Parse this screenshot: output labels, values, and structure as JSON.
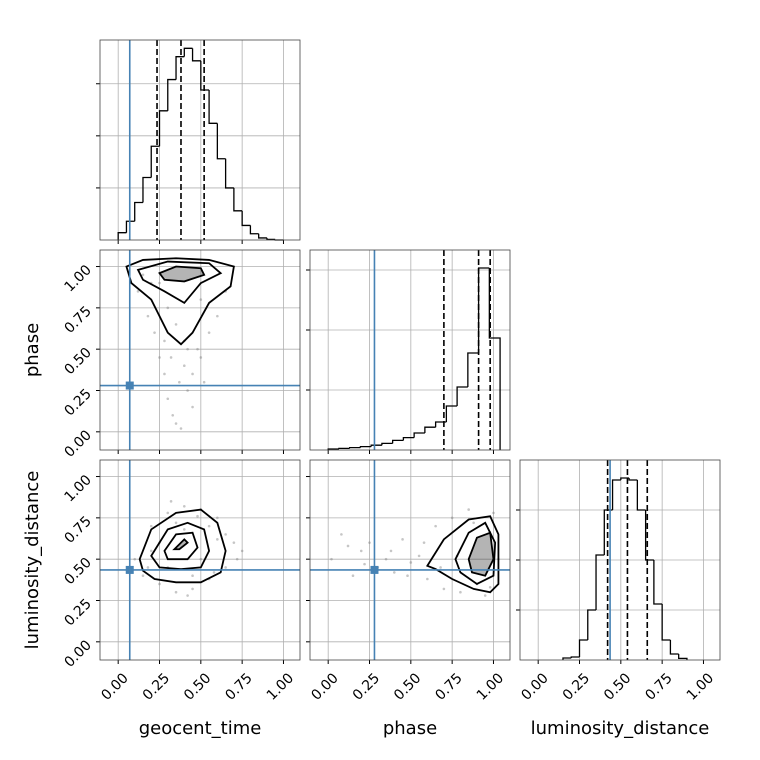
{
  "chart_data": [
    {
      "type": "histogram",
      "grid": true,
      "color": "#000000",
      "truth_color": "#4682b4",
      "bins": [
        0,
        0.05,
        0.1,
        0.15,
        0.2,
        0.25,
        0.3,
        0.35,
        0.4,
        0.45,
        0.5,
        0.55,
        0.6,
        0.65,
        0.7,
        0.75,
        0.8,
        0.85,
        0.9,
        0.95,
        1.0
      ],
      "counts": [
        35,
        90,
        180,
        300,
        450,
        620,
        770,
        880,
        920,
        860,
        720,
        560,
        390,
        250,
        140,
        70,
        30,
        10,
        3,
        0
      ],
      "xlim": [
        -0.11,
        1.1
      ],
      "xticks": [
        0,
        0.25,
        0.5,
        0.75,
        1
      ],
      "ylim": [
        0,
        960
      ],
      "yticks": [
        250,
        500,
        750
      ],
      "quantiles": [
        0.235,
        0.38,
        0.52
      ],
      "truth": 0.07
    },
    {
      "type": "histogram",
      "grid": true,
      "color": "#000000",
      "truth_color": "#4682b4",
      "bins": [
        0,
        0.065,
        0.13,
        0.195,
        0.26,
        0.325,
        0.39,
        0.455,
        0.52,
        0.585,
        0.65,
        0.715,
        0.78,
        0.845,
        0.91,
        0.975,
        1.04
      ],
      "counts": [
        5,
        8,
        12,
        17,
        24,
        33,
        48,
        62,
        85,
        114,
        140,
        220,
        315,
        485,
        910,
        560
      ],
      "xlim": [
        -0.11,
        1.1
      ],
      "xticks": [
        0,
        0.25,
        0.5,
        0.75,
        1
      ],
      "ylim": [
        0,
        1000
      ],
      "yticks": [
        300,
        600,
        900
      ],
      "quantiles": [
        0.7,
        0.91,
        0.98
      ],
      "truth": 0.28
    },
    {
      "type": "histogram",
      "grid": true,
      "color": "#000000",
      "truth_color": "#4682b4",
      "xlabel": "luminosity_distance",
      "bins": [
        0.15,
        0.2,
        0.25,
        0.3,
        0.35,
        0.4,
        0.45,
        0.5,
        0.55,
        0.6,
        0.65,
        0.7,
        0.75,
        0.8,
        0.85,
        0.9
      ],
      "counts": [
        10,
        15,
        100,
        250,
        525,
        750,
        900,
        910,
        900,
        750,
        500,
        280,
        100,
        30,
        8
      ],
      "xlim": [
        -0.11,
        1.1
      ],
      "xticks": [
        {
          "value": 0,
          "label": "0.00"
        },
        {
          "value": 0.25,
          "label": "0.25"
        },
        {
          "value": 0.5,
          "label": "0.50"
        },
        {
          "value": 0.75,
          "label": "0.75"
        },
        {
          "value": 1,
          "label": "1.00"
        }
      ],
      "ylim": [
        0,
        1000
      ],
      "yticks": [
        250,
        500,
        750
      ],
      "quantiles": [
        0.42,
        0.54,
        0.66
      ],
      "truth": 0.435
    },
    {
      "type": "scatter",
      "grid": true,
      "color": "#808080",
      "truth_color": "#4682b4",
      "ylabel": "phase",
      "x": [
        0.12,
        0.18,
        0.22,
        0.25,
        0.28,
        0.3,
        0.33,
        0.35,
        0.37,
        0.4,
        0.42,
        0.45,
        0.48,
        0.5,
        0.55,
        0.6,
        0.65,
        0.2,
        0.3,
        0.4,
        0.5,
        0.35,
        0.45,
        0.25,
        0.38,
        0.42,
        0.32,
        0.28,
        0.52,
        0.15
      ],
      "y": [
        0.85,
        0.7,
        0.6,
        0.45,
        0.35,
        0.2,
        0.1,
        0.05,
        0.3,
        0.4,
        0.25,
        0.15,
        0.5,
        0.45,
        0.6,
        0.7,
        0.85,
        0.9,
        0.75,
        0.55,
        0.8,
        0.65,
        0.35,
        0.9,
        0.02,
        0.5,
        0.45,
        0.55,
        0.3,
        0.95
      ],
      "contours": [
        {
          "x": [
            0.05,
            0.15,
            0.35,
            0.55,
            0.7,
            0.68,
            0.55,
            0.45,
            0.38,
            0.3,
            0.2,
            0.08
          ],
          "y": [
            1.0,
            1.04,
            1.05,
            1.04,
            1.0,
            0.88,
            0.78,
            0.6,
            0.53,
            0.6,
            0.8,
            0.9
          ]
        },
        {
          "x": [
            0.12,
            0.3,
            0.55,
            0.62,
            0.5,
            0.4,
            0.28,
            0.15
          ],
          "y": [
            0.98,
            1.03,
            1.02,
            0.96,
            0.9,
            0.78,
            0.85,
            0.92
          ]
        },
        {
          "x": [
            0.25,
            0.35,
            0.5,
            0.52,
            0.4,
            0.28
          ],
          "y": [
            0.96,
            1.0,
            0.99,
            0.95,
            0.91,
            0.92
          ]
        }
      ],
      "truth": {
        "x": 0.07,
        "y": 0.28
      },
      "xlim": [
        -0.11,
        1.1
      ],
      "xticks": [
        0,
        0.25,
        0.5,
        0.75,
        1
      ],
      "ylim": [
        -0.11,
        1.1
      ],
      "yticks": [
        {
          "value": 0,
          "label": "0.00"
        },
        {
          "value": 0.25,
          "label": "0.25"
        },
        {
          "value": 0.5,
          "label": "0.50"
        },
        {
          "value": 0.75,
          "label": "0.75"
        },
        {
          "value": 1,
          "label": "1.00"
        }
      ]
    },
    {
      "type": "scatter",
      "grid": true,
      "color": "#808080",
      "truth_color": "#4682b4",
      "xlabel": "geocent_time",
      "ylabel": "luminosity_distance",
      "x": [
        0.1,
        0.15,
        0.2,
        0.25,
        0.3,
        0.35,
        0.4,
        0.45,
        0.5,
        0.55,
        0.6,
        0.65,
        0.7,
        0.75,
        0.2,
        0.3,
        0.4,
        0.5,
        0.6,
        0.25,
        0.35,
        0.45,
        0.55,
        0.65,
        0.18,
        0.72,
        0.42,
        0.32,
        0.58,
        0.48
      ],
      "y": [
        0.5,
        0.4,
        0.7,
        0.35,
        0.78,
        0.3,
        0.82,
        0.32,
        0.8,
        0.38,
        0.75,
        0.45,
        0.6,
        0.55,
        0.55,
        0.45,
        0.68,
        0.5,
        0.62,
        0.6,
        0.72,
        0.4,
        0.7,
        0.65,
        0.45,
        0.5,
        0.28,
        0.85,
        0.42,
        0.76
      ],
      "contours": [
        {
          "x": [
            0.13,
            0.2,
            0.35,
            0.5,
            0.6,
            0.65,
            0.62,
            0.5,
            0.35,
            0.22,
            0.15
          ],
          "y": [
            0.5,
            0.68,
            0.78,
            0.8,
            0.72,
            0.55,
            0.42,
            0.36,
            0.36,
            0.38,
            0.43
          ]
        },
        {
          "x": [
            0.2,
            0.3,
            0.42,
            0.52,
            0.55,
            0.5,
            0.38,
            0.25
          ],
          "y": [
            0.52,
            0.68,
            0.72,
            0.68,
            0.55,
            0.45,
            0.44,
            0.45
          ]
        },
        {
          "x": [
            0.28,
            0.35,
            0.45,
            0.48,
            0.42,
            0.3
          ],
          "y": [
            0.55,
            0.65,
            0.66,
            0.57,
            0.5,
            0.5
          ]
        },
        {
          "x": [
            0.34,
            0.4,
            0.42,
            0.37
          ],
          "y": [
            0.56,
            0.62,
            0.6,
            0.56
          ]
        }
      ],
      "truth": {
        "x": 0.07,
        "y": 0.435
      },
      "xlim": [
        -0.11,
        1.1
      ],
      "xticks": [
        {
          "value": 0,
          "label": "0.00"
        },
        {
          "value": 0.25,
          "label": "0.25"
        },
        {
          "value": 0.5,
          "label": "0.50"
        },
        {
          "value": 0.75,
          "label": "0.75"
        },
        {
          "value": 1,
          "label": "1.00"
        }
      ],
      "ylim": [
        -0.11,
        1.1
      ],
      "yticks": [
        {
          "value": 0,
          "label": "0.00"
        },
        {
          "value": 0.25,
          "label": "0.25"
        },
        {
          "value": 0.5,
          "label": "0.50"
        },
        {
          "value": 0.75,
          "label": "0.75"
        },
        {
          "value": 1,
          "label": "1.00"
        }
      ]
    },
    {
      "type": "scatter",
      "grid": true,
      "color": "#808080",
      "truth_color": "#4682b4",
      "xlabel": "phase",
      "x": [
        0.02,
        0.08,
        0.15,
        0.2,
        0.25,
        0.3,
        0.35,
        0.4,
        0.45,
        0.5,
        0.55,
        0.6,
        0.65,
        0.7,
        0.75,
        0.8,
        0.85,
        0.9,
        0.95,
        1.0,
        0.12,
        0.22,
        0.38,
        0.48,
        0.58,
        0.68,
        0.78,
        0.88,
        0.98,
        1.03
      ],
      "y": [
        0.5,
        0.65,
        0.4,
        0.55,
        0.6,
        0.45,
        0.5,
        0.42,
        0.62,
        0.48,
        0.52,
        0.38,
        0.7,
        0.32,
        0.75,
        0.3,
        0.8,
        0.35,
        0.28,
        0.78,
        0.58,
        0.47,
        0.55,
        0.4,
        0.6,
        0.45,
        0.52,
        0.72,
        0.33,
        0.5
      ],
      "contours": [
        {
          "x": [
            0.6,
            0.7,
            0.85,
            0.98,
            1.03,
            1.03,
            0.98,
            0.88,
            0.75,
            0.65
          ],
          "y": [
            0.46,
            0.62,
            0.74,
            0.76,
            0.65,
            0.35,
            0.3,
            0.32,
            0.38,
            0.44
          ]
        },
        {
          "x": [
            0.77,
            0.85,
            0.95,
            1.01,
            1.0,
            0.9,
            0.8
          ],
          "y": [
            0.5,
            0.66,
            0.72,
            0.6,
            0.4,
            0.35,
            0.42
          ]
        },
        {
          "x": [
            0.85,
            0.9,
            0.98,
            1.0,
            0.95,
            0.87
          ],
          "y": [
            0.5,
            0.63,
            0.66,
            0.5,
            0.4,
            0.42
          ]
        }
      ],
      "truth": {
        "x": 0.28,
        "y": 0.435
      },
      "xlim": [
        -0.11,
        1.1
      ],
      "xticks": [
        {
          "value": 0,
          "label": "0.00"
        },
        {
          "value": 0.25,
          "label": "0.25"
        },
        {
          "value": 0.5,
          "label": "0.50"
        },
        {
          "value": 0.75,
          "label": "0.75"
        },
        {
          "value": 1,
          "label": "1.00"
        }
      ],
      "ylim": [
        -0.11,
        1.1
      ],
      "yticks": [
        0,
        0.25,
        0.5,
        0.75,
        1
      ]
    }
  ]
}
